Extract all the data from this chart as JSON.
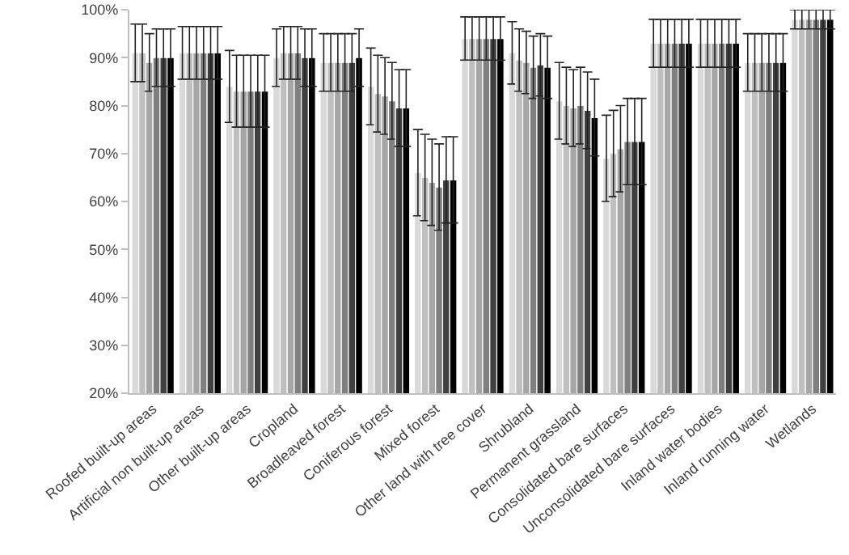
{
  "chart_data": {
    "type": "bar",
    "categories": [
      "Roofed built-up areas",
      "Artificial non built-up areas",
      "Other built-up areas",
      "Cropland",
      "Broadleaved forest",
      "Coniferous forest",
      "Mixed forest",
      "Other land with tree cover",
      "Shrubland",
      "Permanent grassland",
      "Consolidated bare surfaces",
      "Unconsolidated bare surfaces",
      "Inland water bodies",
      "Inland running water",
      "Wetlands"
    ],
    "series": [
      {
        "color": "#d9d9d9",
        "values": [
          91,
          91,
          84,
          90,
          89,
          84,
          66,
          94,
          91,
          81,
          69,
          93,
          93,
          89,
          98
        ],
        "errors": [
          6,
          5.5,
          7.5,
          6,
          6,
          8,
          9,
          4.5,
          6.5,
          8,
          9,
          5,
          5,
          6,
          2
        ]
      },
      {
        "color": "#bfbfbf",
        "values": [
          91,
          91,
          83,
          91,
          89,
          82.5,
          65,
          94,
          89.5,
          80,
          70,
          93,
          93,
          89,
          98
        ],
        "errors": [
          6,
          5.5,
          7.5,
          5.5,
          6,
          8,
          9,
          4.5,
          6.5,
          8,
          9,
          5,
          5,
          6,
          2
        ]
      },
      {
        "color": "#a6a6a6",
        "values": [
          89,
          91,
          83,
          91,
          89,
          82,
          64,
          94,
          89,
          79.5,
          71,
          93,
          93,
          89,
          98
        ],
        "errors": [
          6,
          5.5,
          7.5,
          5.5,
          6,
          8,
          9,
          4.5,
          6.5,
          8,
          9,
          5,
          5,
          6,
          2
        ]
      },
      {
        "color": "#7f7f7f",
        "values": [
          90,
          91,
          83,
          91,
          89,
          81,
          63,
          94,
          88,
          80,
          72.5,
          93,
          93,
          89,
          98
        ],
        "errors": [
          6,
          5.5,
          7.5,
          5.5,
          6,
          8,
          9,
          4.5,
          6.5,
          8,
          9,
          5,
          5,
          6,
          2
        ]
      },
      {
        "color": "#404040",
        "values": [
          90,
          91,
          83,
          90,
          89,
          79.5,
          64.5,
          94,
          88.5,
          79,
          72.5,
          93,
          93,
          89,
          98
        ],
        "errors": [
          6,
          5.5,
          7.5,
          6,
          6,
          8,
          9,
          4.5,
          6.5,
          8,
          9,
          5,
          5,
          6,
          2
        ]
      },
      {
        "color": "#000000",
        "values": [
          90,
          91,
          83,
          90,
          90,
          79.5,
          64.5,
          94,
          88,
          77.5,
          72.5,
          93,
          93,
          89,
          98
        ],
        "errors": [
          6,
          5.5,
          7.5,
          6,
          6,
          8,
          9,
          4.5,
          6.5,
          8,
          9,
          5,
          5,
          6,
          2
        ]
      }
    ],
    "ylim": [
      20,
      100
    ],
    "yticks": [
      {
        "value": 20,
        "label": "20%"
      },
      {
        "value": 30,
        "label": "30%"
      },
      {
        "value": 40,
        "label": "40%"
      },
      {
        "value": 50,
        "label": "50%"
      },
      {
        "value": 60,
        "label": "60%"
      },
      {
        "value": 70,
        "label": "70%"
      },
      {
        "value": 80,
        "label": "80%"
      },
      {
        "value": 90,
        "label": "90%"
      },
      {
        "value": 100,
        "label": "100%"
      }
    ],
    "grid": false
  }
}
